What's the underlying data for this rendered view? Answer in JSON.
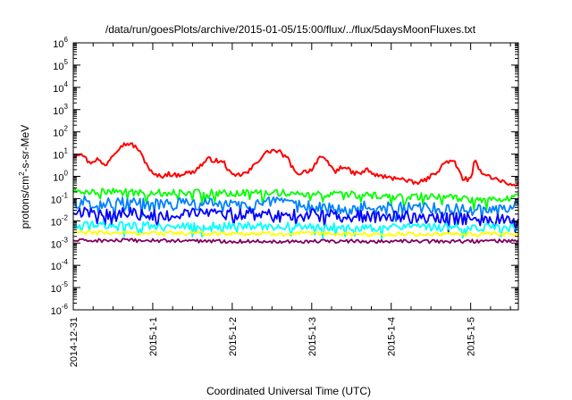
{
  "chart_data": {
    "type": "line",
    "title": "/data/run/goesPlots/archive/2015-01-05/15:00/flux/../flux/5daysMoonFluxes.txt",
    "xlabel": "Coordinated Universal Time (UTC)",
    "ylabel": {
      "pre": "protons/cm",
      "sup": "2",
      "post": "-s-sr-MeV"
    },
    "yscale": "log",
    "ylim": [
      1e-06,
      1000000.0
    ],
    "xlim": [
      0,
      5.6
    ],
    "x_ticks": [
      {
        "x": 0,
        "label": "2014-12-31"
      },
      {
        "x": 1,
        "label": "2015-1-1"
      },
      {
        "x": 2,
        "label": "2015-1-2"
      },
      {
        "x": 3,
        "label": "2015-1-3"
      },
      {
        "x": 4,
        "label": "2015-1-4"
      },
      {
        "x": 5,
        "label": "2015-1-5"
      }
    ],
    "y_ticks": [
      {
        "value": 1e-06,
        "base": "10",
        "exp": "-6"
      },
      {
        "value": 1e-05,
        "base": "10",
        "exp": "-5"
      },
      {
        "value": 0.0001,
        "base": "10",
        "exp": "-4"
      },
      {
        "value": 0.001,
        "base": "10",
        "exp": "-3"
      },
      {
        "value": 0.01,
        "base": "10",
        "exp": "-2"
      },
      {
        "value": 0.1,
        "base": "10",
        "exp": "-1"
      },
      {
        "value": 1,
        "base": "10",
        "exp": "0"
      },
      {
        "value": 10,
        "base": "10",
        "exp": "1"
      },
      {
        "value": 100,
        "base": "10",
        "exp": "2"
      },
      {
        "value": 1000,
        "base": "10",
        "exp": "3"
      },
      {
        "value": 10000,
        "base": "10",
        "exp": "4"
      },
      {
        "value": 100000,
        "base": "10",
        "exp": "5"
      },
      {
        "value": 1000000,
        "base": "10",
        "exp": "6"
      }
    ],
    "grid": false,
    "series": [
      {
        "color": "#ff0000",
        "points": [
          [
            0,
            8
          ],
          [
            0.1,
            12
          ],
          [
            0.2,
            4
          ],
          [
            0.3,
            6
          ],
          [
            0.4,
            3
          ],
          [
            0.5,
            10
          ],
          [
            0.6,
            25
          ],
          [
            0.7,
            30
          ],
          [
            0.8,
            20
          ],
          [
            0.9,
            5
          ],
          [
            1.0,
            1.2
          ],
          [
            1.1,
            1.0
          ],
          [
            1.2,
            1.3
          ],
          [
            1.3,
            1.1
          ],
          [
            1.4,
            1.4
          ],
          [
            1.5,
            1.5
          ],
          [
            1.6,
            3
          ],
          [
            1.7,
            6
          ],
          [
            1.8,
            5
          ],
          [
            1.9,
            4
          ],
          [
            2.0,
            1.0
          ],
          [
            2.1,
            1.2
          ],
          [
            2.2,
            1.5
          ],
          [
            2.3,
            4
          ],
          [
            2.4,
            10
          ],
          [
            2.5,
            15
          ],
          [
            2.6,
            12
          ],
          [
            2.7,
            6
          ],
          [
            2.8,
            1.3
          ],
          [
            2.9,
            1.6
          ],
          [
            3.0,
            2
          ],
          [
            3.1,
            8
          ],
          [
            3.2,
            4
          ],
          [
            3.3,
            1.6
          ],
          [
            3.4,
            3
          ],
          [
            3.5,
            1.5
          ],
          [
            3.6,
            1.3
          ],
          [
            3.7,
            2
          ],
          [
            3.8,
            1.1
          ],
          [
            3.9,
            1.0
          ],
          [
            4.0,
            0.8
          ],
          [
            4.1,
            0.9
          ],
          [
            4.2,
            0.6
          ],
          [
            4.3,
            0.5
          ],
          [
            4.4,
            0.6
          ],
          [
            4.5,
            1.0
          ],
          [
            4.6,
            2
          ],
          [
            4.7,
            5
          ],
          [
            4.8,
            4
          ],
          [
            4.9,
            0.8
          ],
          [
            5.0,
            0.7
          ],
          [
            5.05,
            5
          ],
          [
            5.1,
            2
          ],
          [
            5.2,
            1.2
          ],
          [
            5.3,
            0.8
          ],
          [
            5.4,
            0.6
          ],
          [
            5.5,
            0.4
          ],
          [
            5.6,
            0.45
          ]
        ]
      },
      {
        "color": "#00ff00",
        "points": [
          [
            0,
            0.22
          ],
          [
            0.5,
            0.2
          ],
          [
            1.0,
            0.18
          ],
          [
            1.5,
            0.2
          ],
          [
            2.0,
            0.17
          ],
          [
            2.5,
            0.2
          ],
          [
            3.0,
            0.15
          ],
          [
            3.5,
            0.15
          ],
          [
            4.0,
            0.12
          ],
          [
            4.5,
            0.13
          ],
          [
            5.0,
            0.09
          ],
          [
            5.3,
            0.1
          ],
          [
            5.6,
            0.12
          ]
        ]
      },
      {
        "color": "#0080ff",
        "points": [
          [
            0,
            0.07
          ],
          [
            0.5,
            0.06
          ],
          [
            1.0,
            0.05
          ],
          [
            1.5,
            0.06
          ],
          [
            2.0,
            0.05
          ],
          [
            2.5,
            0.06
          ],
          [
            3.0,
            0.04
          ],
          [
            3.5,
            0.04
          ],
          [
            4.0,
            0.035
          ],
          [
            4.5,
            0.035
          ],
          [
            5.0,
            0.03
          ],
          [
            5.3,
            0.03
          ],
          [
            5.6,
            0.04
          ]
        ]
      },
      {
        "color": "#0000ff",
        "points": [
          [
            0,
            0.025
          ],
          [
            0.5,
            0.022
          ],
          [
            1.0,
            0.02
          ],
          [
            1.5,
            0.022
          ],
          [
            2.0,
            0.02
          ],
          [
            2.5,
            0.02
          ],
          [
            3.0,
            0.018
          ],
          [
            3.5,
            0.016
          ],
          [
            4.0,
            0.015
          ],
          [
            4.5,
            0.014
          ],
          [
            5.0,
            0.012
          ],
          [
            5.3,
            0.011
          ],
          [
            5.6,
            0.012
          ]
        ]
      },
      {
        "color": "#00ffff",
        "points": [
          [
            0,
            0.007
          ],
          [
            1.0,
            0.006
          ],
          [
            2.0,
            0.006
          ],
          [
            3.0,
            0.0055
          ],
          [
            4.0,
            0.005
          ],
          [
            5.0,
            0.005
          ],
          [
            5.6,
            0.005
          ]
        ]
      },
      {
        "color": "#ffff00",
        "points": [
          [
            0,
            0.003
          ],
          [
            1.0,
            0.0028
          ],
          [
            2.0,
            0.0027
          ],
          [
            3.0,
            0.0026
          ],
          [
            4.0,
            0.0025
          ],
          [
            5.0,
            0.0025
          ],
          [
            5.6,
            0.0025
          ]
        ]
      },
      {
        "color": "#800060",
        "points": [
          [
            0,
            0.0013
          ],
          [
            1.0,
            0.0013
          ],
          [
            2.0,
            0.0012
          ],
          [
            3.0,
            0.0012
          ],
          [
            4.0,
            0.0012
          ],
          [
            5.0,
            0.0012
          ],
          [
            5.6,
            0.0013
          ]
        ]
      }
    ]
  }
}
